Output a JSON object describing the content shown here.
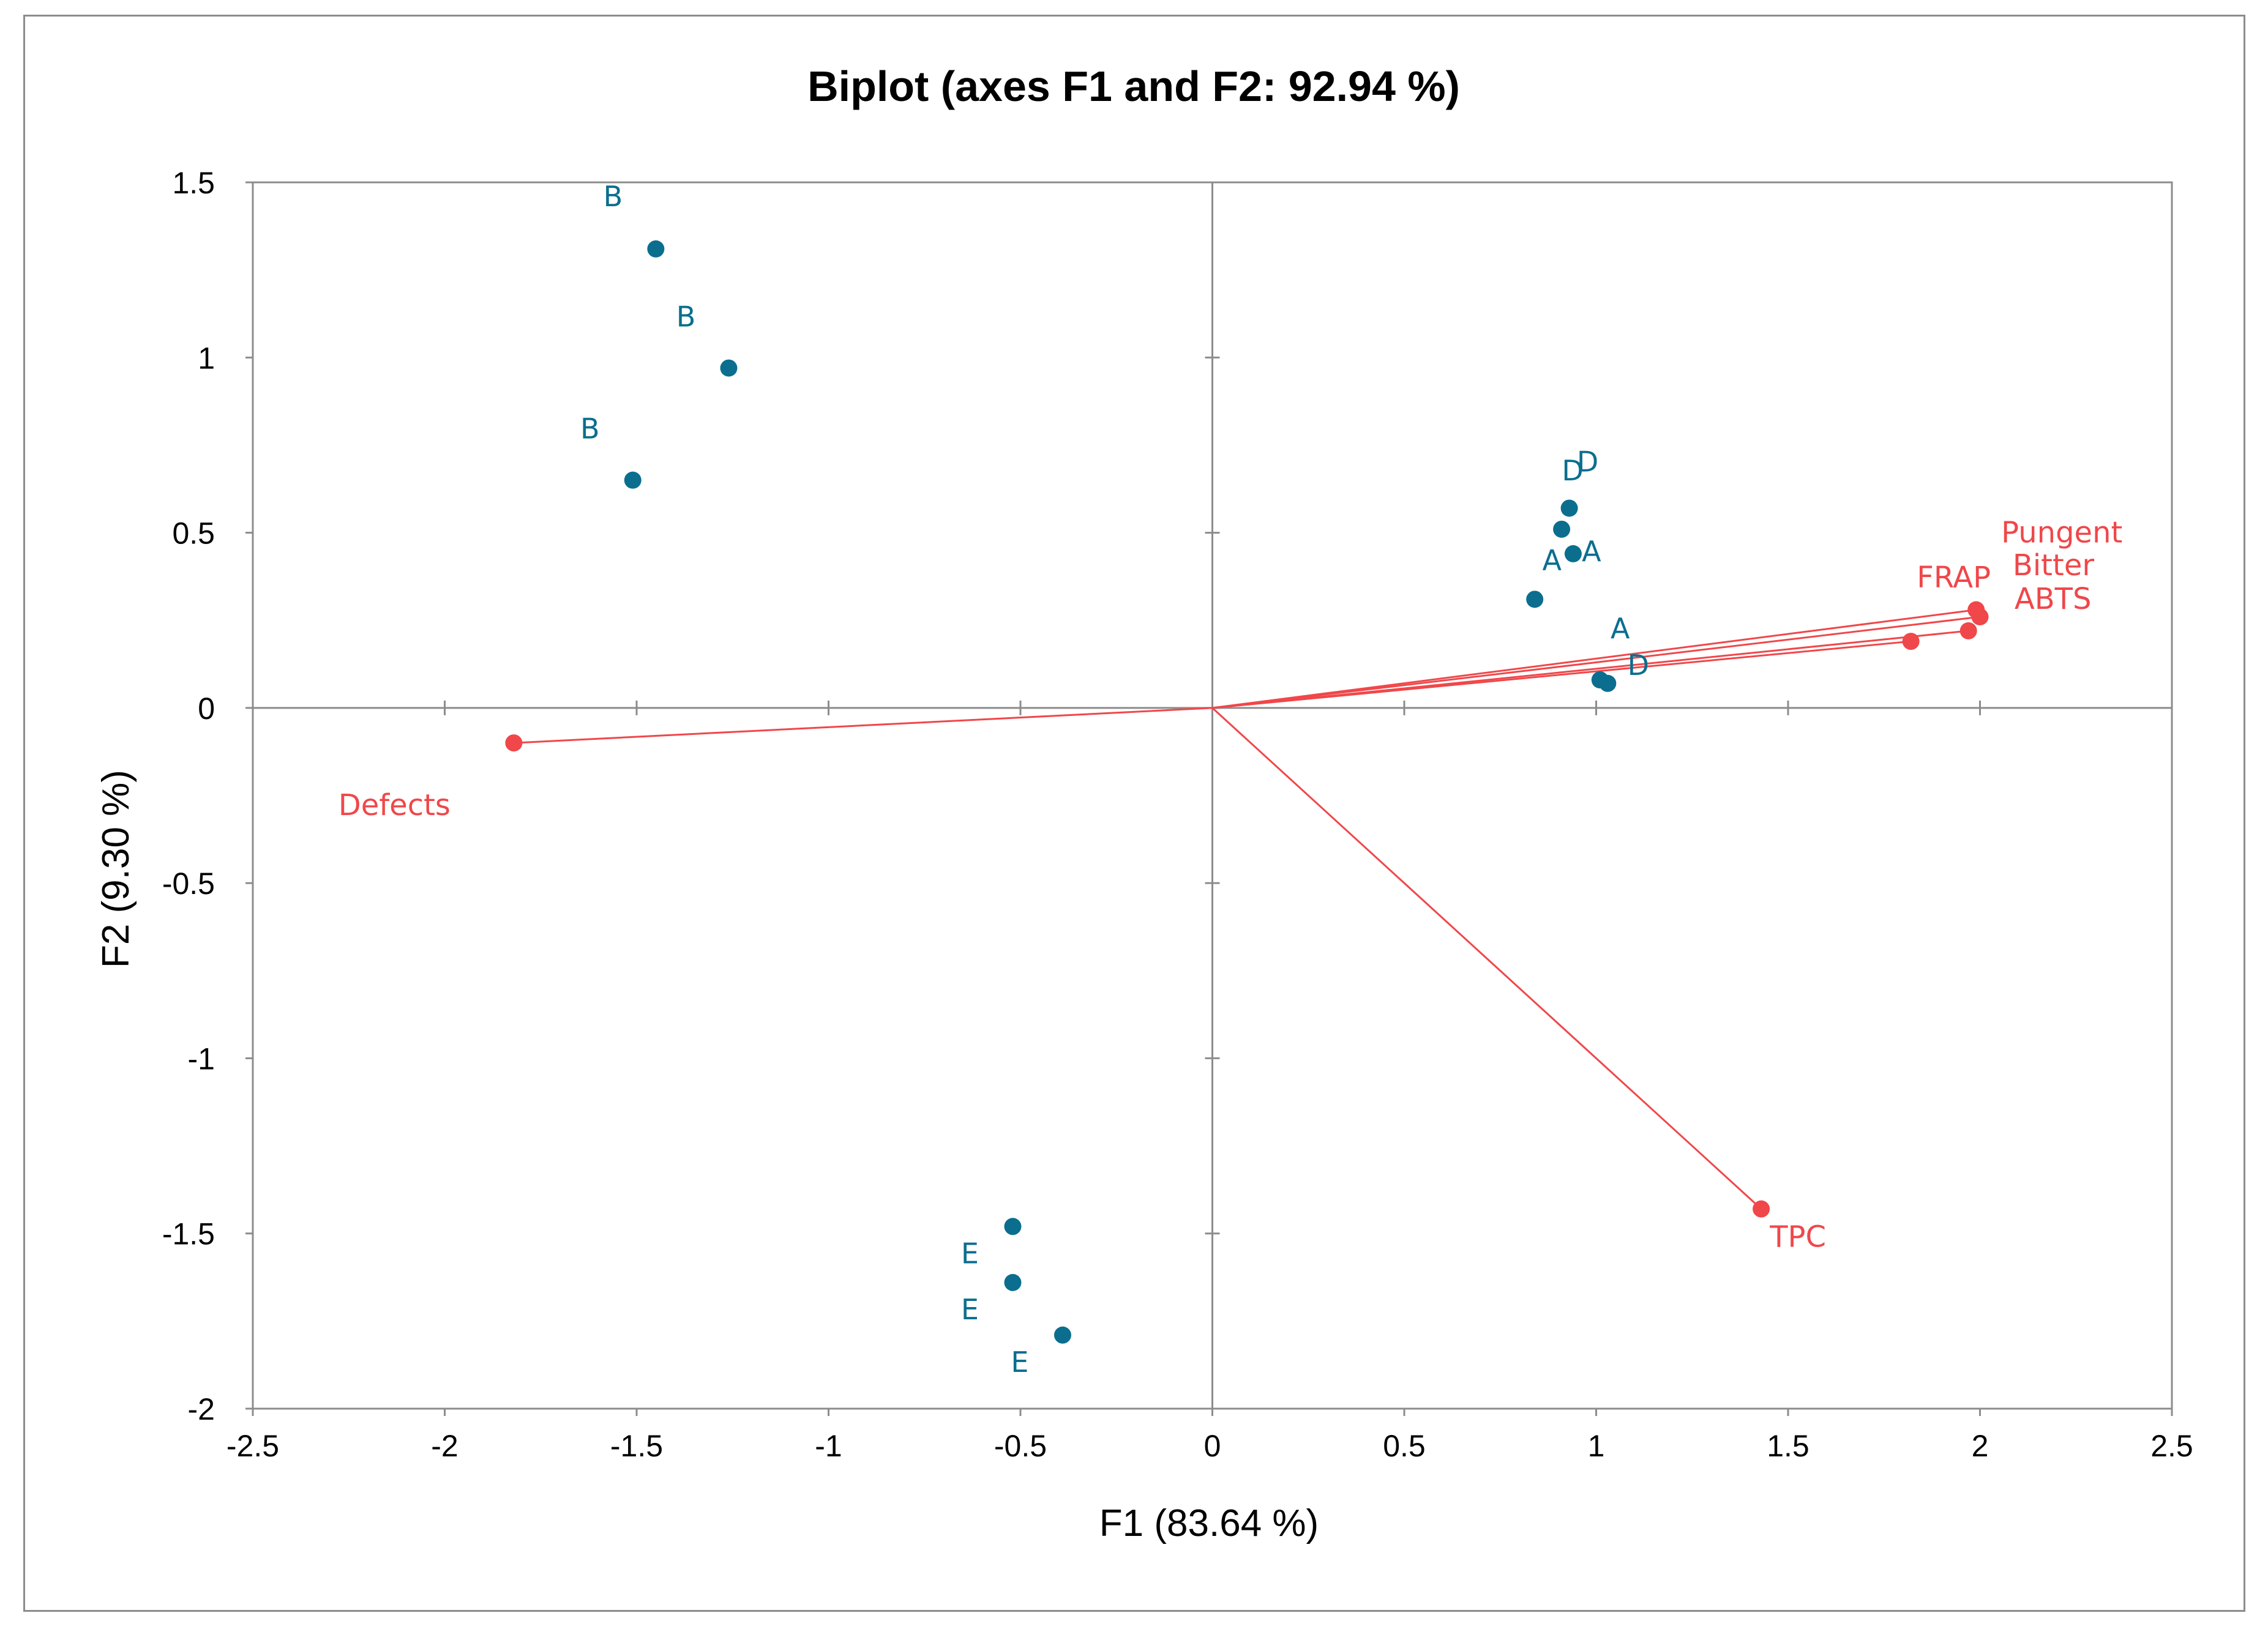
{
  "chart_data": {
    "type": "scatter",
    "title": "Biplot (axes F1 and F2: 92.94 %)",
    "xlabel": "F1 (83.64 %)",
    "ylabel": "F2 (9.30 %)",
    "xlim": [
      -2.5,
      2.5
    ],
    "ylim": [
      -2,
      1.5
    ],
    "x_ticks": [
      "-2.5",
      "-2",
      "-1.5",
      "-1",
      "-0.5",
      "0",
      "0.5",
      "1",
      "1.5",
      "2",
      "2.5"
    ],
    "y_ticks": [
      "1.5",
      "1",
      "0.5",
      "0",
      "-0.5",
      "-1",
      "-1.5",
      "-2"
    ],
    "grid": false,
    "colors": {
      "observations": "#0b6e8f",
      "variables": "#f0474a",
      "axes": "#8c8c8c"
    },
    "observations": [
      {
        "label": "B",
        "x": -1.45,
        "y": 1.31,
        "label_pos": "top-left"
      },
      {
        "label": "B",
        "x": -1.26,
        "y": 0.97,
        "label_pos": "top-left"
      },
      {
        "label": "B",
        "x": -1.51,
        "y": 0.65,
        "label_pos": "top-left"
      },
      {
        "label": "D",
        "x": 0.93,
        "y": 0.57,
        "label_pos": "top"
      },
      {
        "label": "A",
        "x": 0.94,
        "y": 0.44,
        "label_pos": "top-right"
      },
      {
        "label": "D",
        "x": 0.91,
        "y": 0.51,
        "label_pos": "top"
      },
      {
        "label": "A",
        "x": 0.84,
        "y": 0.31,
        "label_pos": "top-right"
      },
      {
        "label": "A",
        "x": 1.01,
        "y": 0.08,
        "label_pos": "top-right"
      },
      {
        "label": "D",
        "x": 1.03,
        "y": 0.07,
        "label_pos": "right"
      },
      {
        "label": "E",
        "x": -0.52,
        "y": -1.48,
        "label_pos": "bottom-left"
      },
      {
        "label": "E",
        "x": -0.52,
        "y": -1.64,
        "label_pos": "bottom-left"
      },
      {
        "label": "E",
        "x": -0.39,
        "y": -1.79,
        "label_pos": "bottom-left"
      }
    ],
    "variables": [
      {
        "label": "Defects",
        "x": -1.82,
        "y": -0.1,
        "label_pos": "bottom-left"
      },
      {
        "label": "TPC",
        "x": 1.43,
        "y": -1.43,
        "label_pos": "bottom-right"
      },
      {
        "label": "FRAP",
        "x": 1.82,
        "y": 0.19,
        "label_pos": "top-left"
      },
      {
        "label": "Pungent",
        "x": 1.99,
        "y": 0.28,
        "label_pos": "top-right"
      },
      {
        "label": "Bitter",
        "x": 2.0,
        "y": 0.26,
        "label_pos": "top-right"
      },
      {
        "label": "ABTS",
        "x": 1.97,
        "y": 0.22,
        "label_pos": "right"
      }
    ]
  }
}
